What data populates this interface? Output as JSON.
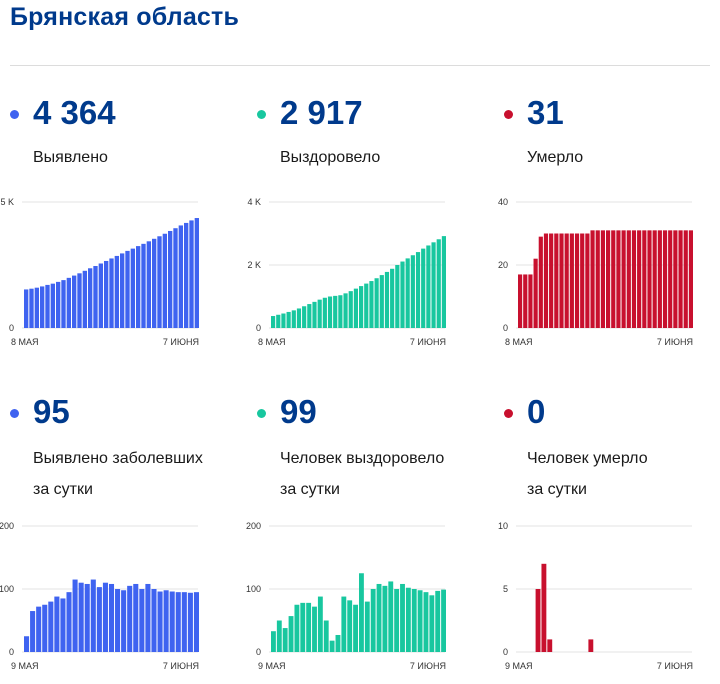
{
  "page": {
    "title": "Брянская область"
  },
  "panels": [
    {
      "id": "total-cases",
      "value": "4 364",
      "label_lines": [
        "Выявлено"
      ],
      "color": "#3f63f0"
    },
    {
      "id": "total-recovered",
      "value": "2 917",
      "label_lines": [
        "Выздоровело"
      ],
      "color": "#18c79f"
    },
    {
      "id": "total-deaths",
      "value": "31",
      "label_lines": [
        "Умерло"
      ],
      "color": "#c8102e"
    },
    {
      "id": "daily-cases",
      "value": "95",
      "label_lines": [
        "Выявлено заболевших",
        "за сутки"
      ],
      "color": "#3f63f0"
    },
    {
      "id": "daily-recovered",
      "value": "99",
      "label_lines": [
        "Человек выздоровело",
        "за сутки"
      ],
      "color": "#18c79f"
    },
    {
      "id": "daily-deaths",
      "value": "0",
      "label_lines": [
        "Человек умерло",
        "за сутки"
      ],
      "color": "#c8102e"
    }
  ],
  "chart_data": [
    {
      "type": "bar",
      "title": "Выявлено",
      "x_start_label": "8 МАЯ",
      "x_end_label": "7 ИЮНЯ",
      "ylim": [
        0,
        5000
      ],
      "y_ticks": [
        0,
        5000
      ],
      "y_tick_labels": [
        "0",
        "5 K"
      ],
      "values": [
        1530,
        1560,
        1600,
        1650,
        1710,
        1760,
        1830,
        1900,
        1990,
        2080,
        2170,
        2270,
        2370,
        2460,
        2560,
        2660,
        2760,
        2860,
        2960,
        3060,
        3150,
        3250,
        3340,
        3440,
        3540,
        3640,
        3740,
        3850,
        3960,
        4070,
        4170,
        4270,
        4364
      ]
    },
    {
      "type": "bar",
      "title": "Выздоровело",
      "x_start_label": "8 МАЯ",
      "x_end_label": "7 ИЮНЯ",
      "ylim": [
        0,
        4000
      ],
      "y_ticks": [
        0,
        2000,
        4000
      ],
      "y_tick_labels": [
        "0",
        "2 K",
        "4 K"
      ],
      "values": [
        380,
        420,
        460,
        510,
        560,
        620,
        690,
        760,
        830,
        900,
        960,
        1000,
        1020,
        1040,
        1100,
        1170,
        1250,
        1330,
        1410,
        1490,
        1580,
        1680,
        1780,
        1880,
        2000,
        2110,
        2210,
        2310,
        2410,
        2520,
        2620,
        2720,
        2817,
        2917
      ]
    },
    {
      "type": "bar",
      "title": "Умерло",
      "x_start_label": "8 МАЯ",
      "x_end_label": "7 ИЮНЯ",
      "ylim": [
        0,
        40
      ],
      "y_ticks": [
        0,
        20,
        40
      ],
      "y_tick_labels": [
        "0",
        "20",
        "40"
      ],
      "values": [
        17,
        17,
        17,
        22,
        29,
        30,
        30,
        30,
        30,
        30,
        30,
        30,
        30,
        30,
        31,
        31,
        31,
        31,
        31,
        31,
        31,
        31,
        31,
        31,
        31,
        31,
        31,
        31,
        31,
        31,
        31,
        31,
        31,
        31
      ]
    },
    {
      "type": "bar",
      "title": "Выявлено заболевших за сутки",
      "x_start_label": "9 МАЯ",
      "x_end_label": "7 ИЮНЯ",
      "ylim": [
        0,
        200
      ],
      "y_ticks": [
        0,
        100,
        200
      ],
      "y_tick_labels": [
        "0",
        "100",
        "200"
      ],
      "values": [
        25,
        65,
        72,
        75,
        80,
        88,
        85,
        95,
        115,
        110,
        108,
        115,
        103,
        110,
        108,
        100,
        98,
        105,
        108,
        100,
        108,
        100,
        96,
        98,
        96,
        95,
        95,
        94,
        95
      ]
    },
    {
      "type": "bar",
      "title": "Человек выздоровело за сутки",
      "x_start_label": "9 МАЯ",
      "x_end_label": "7 ИЮНЯ",
      "ylim": [
        0,
        200
      ],
      "y_ticks": [
        0,
        100,
        200
      ],
      "y_tick_labels": [
        "0",
        "100",
        "200"
      ],
      "values": [
        33,
        50,
        38,
        57,
        75,
        78,
        78,
        72,
        88,
        50,
        18,
        27,
        88,
        82,
        75,
        125,
        80,
        100,
        108,
        105,
        112,
        100,
        108,
        102,
        100,
        98,
        95,
        90,
        97,
        99
      ]
    },
    {
      "type": "bar",
      "title": "Человек умерло за сутки",
      "x_start_label": "9 МАЯ",
      "x_end_label": "7 ИЮНЯ",
      "ylim": [
        0,
        10
      ],
      "y_ticks": [
        0,
        5,
        10
      ],
      "y_tick_labels": [
        "0",
        "5",
        "10"
      ],
      "values": [
        0,
        0,
        0,
        5,
        7,
        1,
        0,
        0,
        0,
        0,
        0,
        0,
        1,
        0,
        0,
        0,
        0,
        0,
        0,
        0,
        0,
        0,
        0,
        0,
        0,
        0,
        0,
        0,
        0,
        0
      ]
    }
  ]
}
